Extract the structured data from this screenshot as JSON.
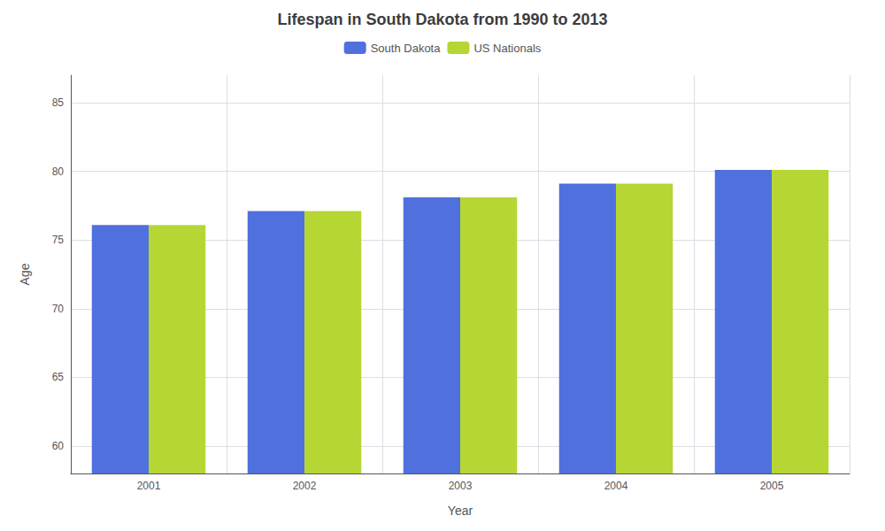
{
  "chart_data": {
    "type": "bar",
    "title": "Lifespan in South Dakota from 1990 to 2013",
    "xlabel": "Year",
    "ylabel": "Age",
    "categories": [
      "2001",
      "2002",
      "2003",
      "2004",
      "2005"
    ],
    "series": [
      {
        "name": "South Dakota",
        "values": [
          76.1,
          77.1,
          78.1,
          79.1,
          80.1
        ]
      },
      {
        "name": "US Nationals",
        "values": [
          76.1,
          77.1,
          78.1,
          79.1,
          80.1
        ]
      }
    ],
    "ylim": [
      58,
      87
    ],
    "yticks": [
      60,
      65,
      70,
      75,
      80,
      85
    ],
    "grid": true,
    "legend": "top"
  }
}
